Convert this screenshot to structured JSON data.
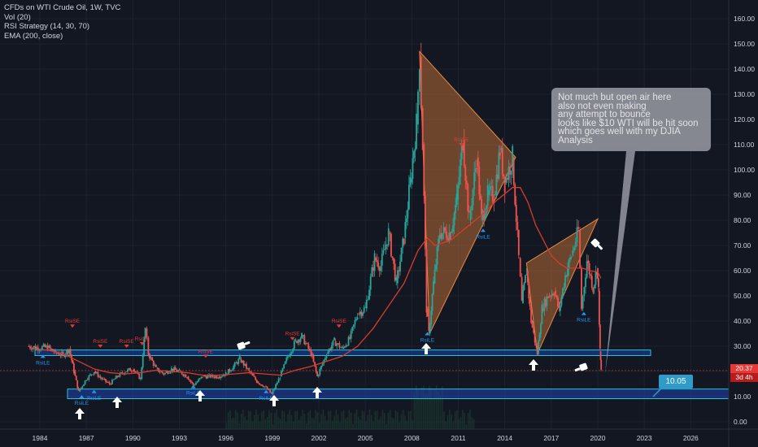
{
  "legend": {
    "title": "CFDs on WTI Crude Oil, 1W, TVC",
    "line2": "Vol (20)",
    "line3": "RSI Strategy (14, 30, 70)",
    "line4": "EMA (200, close)"
  },
  "annotation": {
    "lines": [
      "Not much but open air here",
      "also not even making",
      "any attempt to bounce",
      "looks like $10 WTI will be hit soon",
      "which goes well with my DJIA",
      "Analysis"
    ]
  },
  "price_tag_last": "20.37",
  "price_tag_time": "3d 4h",
  "callout_value": "10.05",
  "signal_labels": {
    "long": "RsiLE",
    "short": "RsiSE"
  },
  "chart_data": {
    "type": "candlestick",
    "y_axis": {
      "min": -5,
      "max": 165,
      "ticks": [
        "0.00",
        "10.00",
        "20.00",
        "30.00",
        "40.00",
        "50.00",
        "60.00",
        "70.00",
        "80.00",
        "90.00",
        "100.00",
        "110.00",
        "120.00",
        "130.00",
        "140.00",
        "150.00",
        "160.00"
      ]
    },
    "x_axis": {
      "min": 1982.3,
      "max": 2029.0,
      "ticks": [
        "1984",
        "1987",
        "1990",
        "1993",
        "1996",
        "1999",
        "2002",
        "2005",
        "2008",
        "2011",
        "2014",
        "2017",
        "2020",
        "2023",
        "2026"
      ]
    },
    "price_series": [
      [
        1983.2,
        30
      ],
      [
        1983.8,
        29.5
      ],
      [
        1984.5,
        29.5
      ],
      [
        1985.0,
        27.5
      ],
      [
        1985.5,
        26.5
      ],
      [
        1985.9,
        29
      ],
      [
        1986.2,
        20
      ],
      [
        1986.5,
        12
      ],
      [
        1987.0,
        17
      ],
      [
        1987.5,
        20
      ],
      [
        1988.0,
        17
      ],
      [
        1988.5,
        15
      ],
      [
        1989.0,
        18
      ],
      [
        1989.5,
        20
      ],
      [
        1990.0,
        21
      ],
      [
        1990.5,
        17
      ],
      [
        1990.8,
        37
      ],
      [
        1991.0,
        27
      ],
      [
        1991.5,
        21
      ],
      [
        1992.0,
        19
      ],
      [
        1992.5,
        21
      ],
      [
        1993.0,
        20
      ],
      [
        1993.5,
        18
      ],
      [
        1993.9,
        14.5
      ],
      [
        1994.5,
        18
      ],
      [
        1995.0,
        18
      ],
      [
        1995.5,
        18
      ],
      [
        1996.0,
        19
      ],
      [
        1996.5,
        22
      ],
      [
        1996.9,
        25
      ],
      [
        1997.5,
        20
      ],
      [
        1998.0,
        16
      ],
      [
        1998.5,
        14
      ],
      [
        1998.95,
        11
      ],
      [
        1999.5,
        18
      ],
      [
        2000.0,
        26
      ],
      [
        2000.5,
        32
      ],
      [
        2000.9,
        34
      ],
      [
        2001.5,
        27
      ],
      [
        2001.9,
        18
      ],
      [
        2002.5,
        27
      ],
      [
        2003.0,
        32
      ],
      [
        2003.5,
        29
      ],
      [
        2004.0,
        33
      ],
      [
        2004.5,
        43
      ],
      [
        2005.0,
        45
      ],
      [
        2005.6,
        65
      ],
      [
        2006.0,
        62
      ],
      [
        2006.5,
        75
      ],
      [
        2007.0,
        55
      ],
      [
        2007.5,
        73
      ],
      [
        2007.9,
        95
      ],
      [
        2008.3,
        118
      ],
      [
        2008.5,
        145
      ],
      [
        2008.7,
        110
      ],
      [
        2008.95,
        45
      ],
      [
        2009.1,
        35
      ],
      [
        2009.4,
        55
      ],
      [
        2009.8,
        75
      ],
      [
        2010.5,
        75
      ],
      [
        2010.9,
        88
      ],
      [
        2011.3,
        112
      ],
      [
        2011.7,
        80
      ],
      [
        2012.2,
        105
      ],
      [
        2012.5,
        80
      ],
      [
        2012.9,
        90
      ],
      [
        2013.3,
        90
      ],
      [
        2013.7,
        108
      ],
      [
        2014.0,
        95
      ],
      [
        2014.5,
        105
      ],
      [
        2014.9,
        65
      ],
      [
        2015.1,
        47
      ],
      [
        2015.4,
        60
      ],
      [
        2015.7,
        40
      ],
      [
        2016.1,
        27
      ],
      [
        2016.4,
        45
      ],
      [
        2016.8,
        50
      ],
      [
        2017.2,
        52
      ],
      [
        2017.5,
        44
      ],
      [
        2017.9,
        58
      ],
      [
        2018.3,
        66
      ],
      [
        2018.75,
        76
      ],
      [
        2018.95,
        45
      ],
      [
        2019.3,
        64
      ],
      [
        2019.7,
        53
      ],
      [
        2019.95,
        61
      ],
      [
        2020.05,
        52
      ],
      [
        2020.15,
        28
      ],
      [
        2020.22,
        20.37
      ]
    ],
    "ema_200": [
      [
        1983.5,
        29
      ],
      [
        1984.5,
        28.5
      ],
      [
        1985.5,
        27
      ],
      [
        1986.5,
        24
      ],
      [
        1987.5,
        21
      ],
      [
        1988.5,
        19.5
      ],
      [
        1989.5,
        19
      ],
      [
        1990.5,
        19.5
      ],
      [
        1991.5,
        20.5
      ],
      [
        1992.5,
        20
      ],
      [
        1993.5,
        19.5
      ],
      [
        1994.5,
        18.5
      ],
      [
        1995.5,
        18.5
      ],
      [
        1996.5,
        19
      ],
      [
        1997.5,
        19.5
      ],
      [
        1998.5,
        19
      ],
      [
        1999.5,
        18.5
      ],
      [
        2000.5,
        20.5
      ],
      [
        2001.5,
        22
      ],
      [
        2002.5,
        24
      ],
      [
        2003.5,
        26
      ],
      [
        2004.5,
        30
      ],
      [
        2005.5,
        37
      ],
      [
        2006.5,
        46
      ],
      [
        2007.5,
        55
      ],
      [
        2008.4,
        68
      ],
      [
        2009.0,
        73
      ],
      [
        2009.5,
        70
      ],
      [
        2010.5,
        72
      ],
      [
        2011.5,
        77
      ],
      [
        2012.5,
        82
      ],
      [
        2013.5,
        88
      ],
      [
        2014.5,
        93
      ],
      [
        2015.0,
        93
      ],
      [
        2015.5,
        87
      ],
      [
        2016.0,
        78
      ],
      [
        2016.5,
        72
      ],
      [
        2017.0,
        66
      ],
      [
        2017.5,
        63
      ],
      [
        2018.0,
        61
      ],
      [
        2018.5,
        61
      ],
      [
        2019.0,
        61
      ],
      [
        2019.5,
        60
      ],
      [
        2020.0,
        59.5
      ],
      [
        2020.2,
        57
      ]
    ]
  },
  "colors": {
    "background": "#131722",
    "grid": "#1e2230",
    "axis_text": "#d1d4dc",
    "candle_up": "#26a69a",
    "candle_down": "#ef5350",
    "ema": "#d43c2c",
    "triangle_fill": "#b86b35",
    "triangle_stroke": "#e38a45",
    "zone_fill": "#1e3fa8",
    "zone_stroke": "#26c6da",
    "signal_long": "#2196f3",
    "signal_short": "#e53935",
    "price_tag": "#e53935",
    "callout": "#2e9bc9"
  }
}
